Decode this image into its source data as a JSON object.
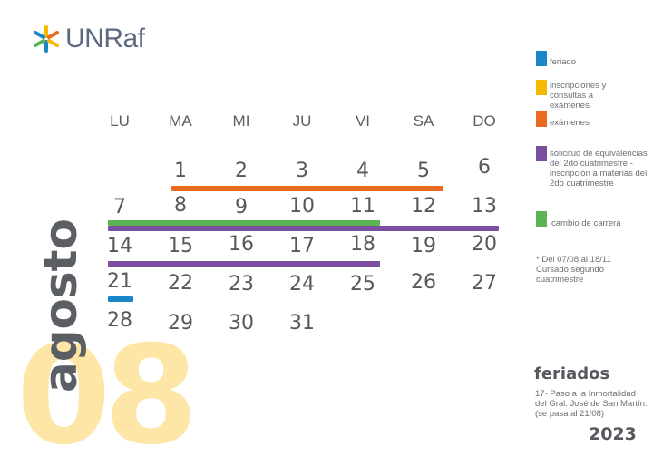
{
  "logo": {
    "text": "UNRaf"
  },
  "month": {
    "name": "agosto",
    "number": "08",
    "year": "2023"
  },
  "weekdays": [
    "LU",
    "MA",
    "MI",
    "JU",
    "VI",
    "SA",
    "DO"
  ],
  "weeks": [
    [
      "",
      "1",
      "2",
      "3",
      "4",
      "5",
      "6"
    ],
    [
      "7",
      "8",
      "9",
      "10",
      "11",
      "12",
      "13"
    ],
    [
      "14",
      "15",
      "16",
      "17",
      "18",
      "19",
      "20"
    ],
    [
      "21",
      "22",
      "23",
      "24",
      "25",
      "26",
      "27"
    ],
    [
      "28",
      "29",
      "30",
      "31",
      "",
      "",
      ""
    ]
  ],
  "legend": [
    {
      "label": "feriado",
      "color": "#1b87c9"
    },
    {
      "label": "inscripciones y consultas a exámenes",
      "color": "#f6b800"
    },
    {
      "label": "exámenes",
      "color": "#ea6a1f"
    },
    {
      "label": "solicitud de equivalencias del 2do cuatrimestre - inscripción a materias del 2do cuatrimestre",
      "color": "#7a4fa0"
    },
    {
      "label": "cambio de carrera",
      "color": "#5cb352"
    }
  ],
  "note": "* Del 07/08 al 18/11 Cursado segundo cuatrimestre",
  "feriados": {
    "title": "feriados",
    "text": "17- Paso a la Inmortalidad del Gral. José de San Martín. (se pasa al 21/08)"
  },
  "colors": {
    "feriado": "#1b87c9",
    "inscripciones": "#f6b800",
    "examenes": "#ea6a1f",
    "equivalencias": "#7a4fa0",
    "cambio": "#5cb352",
    "big_number": "#fde6a6"
  }
}
